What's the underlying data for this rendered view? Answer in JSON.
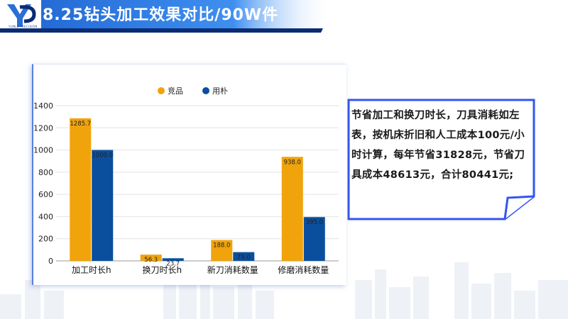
{
  "header": {
    "title": "8.25钻头加工效果对比/90W件",
    "logo_text": "YUNLU PRECISION",
    "accent_color": "#2a6fd6",
    "band_color": "#0b2b73"
  },
  "note": {
    "text": "节省加工和换刀时长，刀具消耗如左表，按机床折旧和人工成本100元/小时计算，每年节省31828元，节省刀具成本48613元，合计80441元;",
    "border_color": "#3355ee"
  },
  "chart_data": {
    "type": "bar",
    "categories": [
      "加工时长h",
      "换刀时长h",
      "新刀消耗数量",
      "修磨消耗数量"
    ],
    "series": [
      {
        "name": "竞品",
        "values": [
          1285.7,
          56.3,
          188.0,
          938.0
        ],
        "labels": [
          "1285.7",
          "56.3",
          "188.0",
          "938.0"
        ],
        "color": "#f0a30a"
      },
      {
        "name": "用朴",
        "values": [
          1000.0,
          23.7,
          79.0,
          395.0
        ],
        "labels": [
          "1000.0",
          "23.7",
          "79.0",
          "395.0"
        ],
        "color": "#0a4f9e"
      }
    ],
    "yticks": [
      "0",
      "200",
      "400",
      "600",
      "800",
      "1000",
      "1200",
      "1400"
    ],
    "ylim": [
      0,
      1400
    ],
    "grid": true,
    "legend": "top-center"
  }
}
